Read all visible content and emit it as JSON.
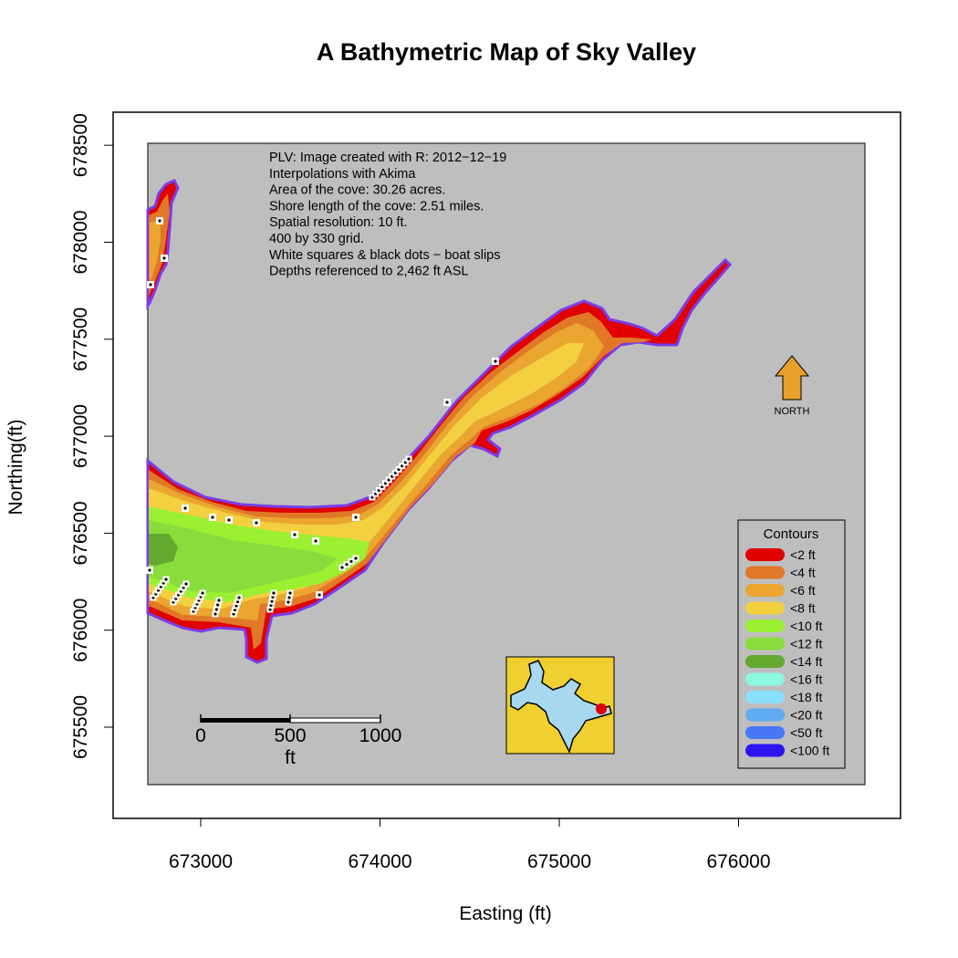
{
  "title": "A Bathymetric Map of  Sky Valley",
  "xlabel": "Easting (ft)",
  "ylabel": "Northing(ft)",
  "x_ticks": [
    "673000",
    "674000",
    "675000",
    "676000"
  ],
  "y_ticks": [
    "675500",
    "676000",
    "676500",
    "677000",
    "677500",
    "678000",
    "678500"
  ],
  "info_lines": [
    "PLV: Image created with R: 2012−12−19",
    "Interpolations with Akima",
    "Area of the cove: 30.26 acres.",
    "Shore length of the cove: 2.51 miles.",
    "Spatial resolution: 10 ft.",
    "400 by 330 grid.",
    "White squares & black dots − boat slips",
    "Depths referenced to 2,462 ft ASL"
  ],
  "north_label": "NORTH",
  "scale_bar": {
    "labels": [
      "0",
      "500",
      "1000"
    ],
    "unit": "ft"
  },
  "legend": {
    "title": "Contours",
    "items": [
      {
        "label": "<2 ft",
        "color": "#e00000"
      },
      {
        "label": "<4 ft",
        "color": "#e07828"
      },
      {
        "label": "<6 ft",
        "color": "#eaa630"
      },
      {
        "label": "<8 ft",
        "color": "#f2d040"
      },
      {
        "label": "<10 ft",
        "color": "#9cf032"
      },
      {
        "label": "<12 ft",
        "color": "#88dc3c"
      },
      {
        "label": "<14 ft",
        "color": "#64a830"
      },
      {
        "label": "<16 ft",
        "color": "#8cf8e0"
      },
      {
        "label": "<18 ft",
        "color": "#88e0fc"
      },
      {
        "label": "<20 ft",
        "color": "#60acf0"
      },
      {
        "label": "<50 ft",
        "color": "#4878f8"
      },
      {
        "label": "<100 ft",
        "color": "#2c14f0"
      }
    ]
  },
  "colors": {
    "background": "#bebebe",
    "shoreline": "#7c3ce8",
    "inset_land": "#f0d030",
    "inset_water": "#a8d8f0",
    "inset_marker": "#e00000",
    "north_arrow": "#e8a028"
  }
}
